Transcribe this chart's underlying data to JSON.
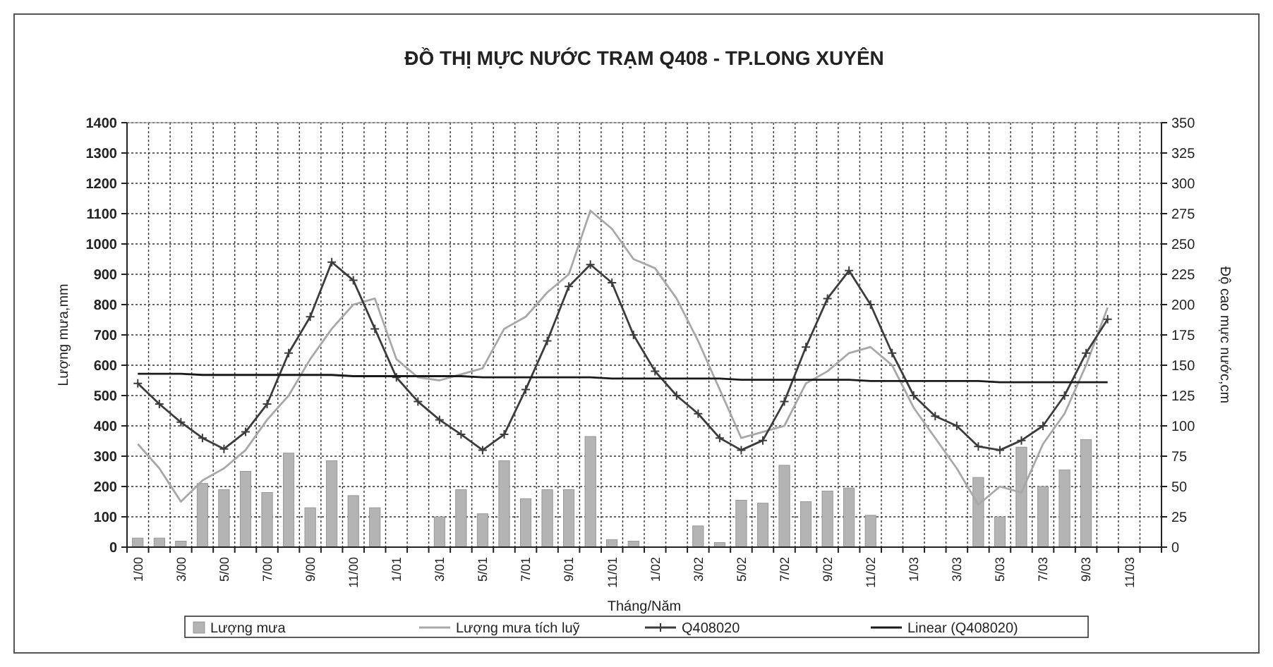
{
  "chart_data": {
    "type": "bar",
    "title": "ĐỒ THỊ MỰC NƯỚC TRẠM Q408 - TP.LONG XUYÊN",
    "xlabel": "Tháng/Năm",
    "ylabel": "Lượng mưa,mm",
    "y2label": "Độ cao mực nước,cm",
    "categories": [
      "1/00",
      null,
      "3/00",
      null,
      "5/00",
      null,
      "7/00",
      null,
      "9/00",
      null,
      "11/00",
      null,
      "1/01",
      null,
      "3/01",
      null,
      "5/01",
      null,
      "7/01",
      null,
      "9/01",
      null,
      "11/01",
      null,
      "1/02",
      null,
      "3/02",
      null,
      "5/02",
      null,
      "7/02",
      null,
      "9/02",
      null,
      "11/02",
      null,
      "1/03",
      null,
      "3/03",
      null,
      "5/03",
      null,
      "7/03",
      null,
      "9/03",
      null,
      "11/03",
      null
    ],
    "ylim": [
      0,
      1400
    ],
    "yticks": [
      0,
      100,
      200,
      300,
      400,
      500,
      600,
      700,
      800,
      900,
      1000,
      1100,
      1200,
      1300,
      1400
    ],
    "y2lim": [
      0,
      350
    ],
    "y2ticks": [
      0,
      25,
      50,
      75,
      100,
      125,
      150,
      175,
      200,
      225,
      250,
      275,
      300,
      325,
      350
    ],
    "grid": true,
    "legend": "bottom",
    "series": [
      {
        "name": "Lượng mưa",
        "color": "#b4b4b4",
        "values": [
          30,
          30,
          20,
          210,
          190,
          250,
          180,
          310,
          130,
          285,
          170,
          130,
          0,
          0,
          100,
          190,
          110,
          285,
          160,
          190,
          190,
          365,
          25,
          20,
          0,
          0,
          70,
          15,
          155,
          145,
          270,
          150,
          185,
          195,
          105,
          0,
          0,
          0,
          0,
          230,
          100,
          330,
          200,
          255,
          355,
          0,
          null,
          null
        ]
      },
      {
        "name": "Lượng mưa tích luỹ",
        "type": "line",
        "color": "#a8a8a8",
        "marker": "none",
        "values": [
          340,
          260,
          150,
          220,
          260,
          320,
          420,
          500,
          620,
          720,
          800,
          820,
          620,
          560,
          550,
          570,
          590,
          720,
          760,
          840,
          900,
          1110,
          1050,
          950,
          920,
          820,
          680,
          520,
          360,
          380,
          400,
          540,
          580,
          640,
          660,
          600,
          460,
          360,
          260,
          140,
          200,
          180,
          340,
          440,
          600,
          790,
          null,
          null
        ]
      },
      {
        "name": "Q408020",
        "type": "line",
        "axis": "y2",
        "color": "#3c3c3c",
        "marker": "cross",
        "values": [
          135,
          118,
          103,
          90,
          81,
          95,
          118,
          160,
          190,
          235,
          220,
          180,
          140,
          120,
          105,
          93,
          80,
          93,
          130,
          170,
          215,
          233,
          218,
          175,
          145,
          125,
          110,
          90,
          80,
          88,
          120,
          165,
          205,
          228,
          200,
          160,
          125,
          108,
          100,
          83,
          80,
          88,
          100,
          125,
          160,
          188,
          null,
          null
        ]
      },
      {
        "name": "Linear (Q408020)",
        "type": "line",
        "axis": "y2",
        "color": "#1a1a1a",
        "marker": "none",
        "values": [
          143,
          143,
          143,
          142,
          142,
          142,
          142,
          142,
          142,
          142,
          141,
          141,
          141,
          141,
          141,
          141,
          140,
          140,
          140,
          140,
          140,
          140,
          139,
          139,
          139,
          139,
          139,
          139,
          138,
          138,
          138,
          138,
          138,
          138,
          137,
          137,
          137,
          137,
          137,
          137,
          136,
          136,
          136,
          136,
          136,
          136,
          null,
          null
        ]
      }
    ]
  }
}
